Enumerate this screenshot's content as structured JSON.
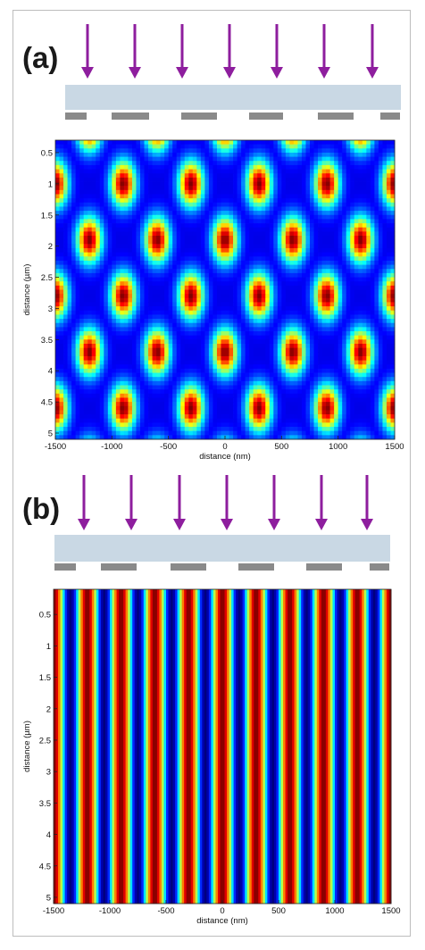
{
  "panels": [
    {
      "label": "(a)",
      "chart_data": {
        "type": "heatmap",
        "pattern": "2D intensity lattice of elliptical spots",
        "xlabel": "distance (nm)",
        "ylabel": "distance (µm)",
        "xlim": [
          -1500,
          1500
        ],
        "ylim": [
          0.3,
          5.1
        ],
        "y_inverted": true,
        "xticks": [
          -1500,
          -1000,
          -500,
          0,
          500,
          1000,
          1500
        ],
        "xtick_labels": [
          "-1500",
          "-1000",
          "-500",
          "0",
          "500",
          "1000",
          "1500"
        ],
        "yticks": [
          0.5,
          1,
          1.5,
          2,
          2.5,
          3,
          3.5,
          4,
          4.5,
          5
        ],
        "ytick_labels": [
          "0.5",
          "1",
          "1.5",
          "2",
          "2.5",
          "3",
          "3.5",
          "4",
          "4.5",
          "5"
        ],
        "x_period_nm": 600,
        "y_period_um": 1.8,
        "colormap": "jet",
        "arrow_color": "#8e1e9e",
        "mask_color": "#c9d8e4",
        "grating_color": "#8a8a8a"
      }
    },
    {
      "label": "(b)",
      "chart_data": {
        "type": "heatmap",
        "pattern": "vertical fringes, invariant along depth",
        "xlabel": "distance (nm)",
        "ylabel": "distance (µm)",
        "xlim": [
          -1500,
          1500
        ],
        "ylim": [
          0.1,
          5.1
        ],
        "y_inverted": true,
        "xticks": [
          -1500,
          -1000,
          -500,
          0,
          500,
          1000,
          1500
        ],
        "xtick_labels": [
          "-1500",
          "-1000",
          "-500",
          "0",
          "500",
          "1000",
          "1500"
        ],
        "yticks": [
          0.5,
          1,
          1.5,
          2,
          2.5,
          3,
          3.5,
          4,
          4.5,
          5
        ],
        "ytick_labels": [
          "0.5",
          "1",
          "1.5",
          "2",
          "2.5",
          "3",
          "3.5",
          "4",
          "4.5",
          "5"
        ],
        "x_period_nm": 300,
        "colormap": "jet",
        "arrow_color": "#8e1e9e",
        "mask_color": "#c9d8e4",
        "grating_color": "#8a8a8a"
      }
    }
  ]
}
